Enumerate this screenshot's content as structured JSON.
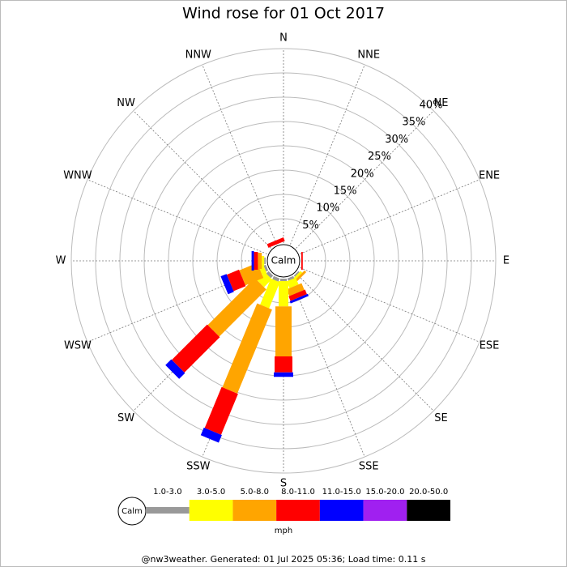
{
  "chart_data": {
    "type": "windrose",
    "title": "Wind rose for 01 Oct 2017",
    "categories": [
      "N",
      "NNE",
      "NE",
      "ENE",
      "E",
      "ESE",
      "SE",
      "SSE",
      "S",
      "SSW",
      "SW",
      "WSW",
      "W",
      "WNW",
      "NW",
      "NNW"
    ],
    "calm_label": "Calm",
    "rlim": [
      0,
      40
    ],
    "rticks": [
      {
        "value": 5,
        "label": "5%"
      },
      {
        "value": 10,
        "label": "10%"
      },
      {
        "value": 15,
        "label": "15%"
      },
      {
        "value": 20,
        "label": "20%"
      },
      {
        "value": 25,
        "label": "25%"
      },
      {
        "value": 30,
        "label": "30%"
      },
      {
        "value": 35,
        "label": "35%"
      },
      {
        "value": 40,
        "label": "40%"
      }
    ],
    "series": [
      {
        "name": "1.0-3.0",
        "color": "#999999",
        "values": [
          0,
          0,
          0,
          0,
          0,
          0,
          0.3,
          0.5,
          0.5,
          0.7,
          0.7,
          0.5,
          0.3,
          0,
          0,
          0
        ]
      },
      {
        "name": "3.0-5.0",
        "color": "#ffff00",
        "values": [
          0,
          0,
          0,
          0,
          0,
          0,
          0.5,
          1.5,
          5.2,
          5.8,
          2.3,
          1.0,
          0.5,
          0,
          0,
          0
        ]
      },
      {
        "name": "5.0-8.0",
        "color": "#ffa500",
        "values": [
          0,
          0,
          0,
          0,
          0,
          0,
          0.5,
          1.5,
          10.3,
          18.7,
          13.7,
          4.0,
          0.8,
          0,
          0,
          0
        ]
      },
      {
        "name": "8.0-11.0",
        "color": "#ff0000",
        "values": [
          0,
          0,
          0,
          0,
          0.3,
          0,
          0,
          1.0,
          3.3,
          9.1,
          10.3,
          2.7,
          0.8,
          0,
          0,
          0.8
        ]
      },
      {
        "name": "11.0-15.0",
        "color": "#0000ff",
        "values": [
          0,
          0,
          0,
          0,
          0,
          0,
          0,
          0.5,
          0.9,
          1.7,
          1.7,
          1.3,
          0.5,
          0,
          0,
          0
        ]
      },
      {
        "name": "15.0-20.0",
        "color": "#a020f0",
        "values": [
          0,
          0,
          0,
          0,
          0,
          0,
          0,
          0,
          0,
          0,
          0,
          0,
          0,
          0,
          0,
          0
        ]
      },
      {
        "name": "20.0-50.0",
        "color": "#000000",
        "values": [
          0,
          0,
          0,
          0,
          0,
          0,
          0,
          0,
          0,
          0,
          0,
          0,
          0,
          0,
          0,
          0
        ]
      }
    ],
    "legend_unit": "mph",
    "footer": "@nw3weather. Generated: 01 Jul 2025 05:36; Load time: 0.11 s"
  }
}
